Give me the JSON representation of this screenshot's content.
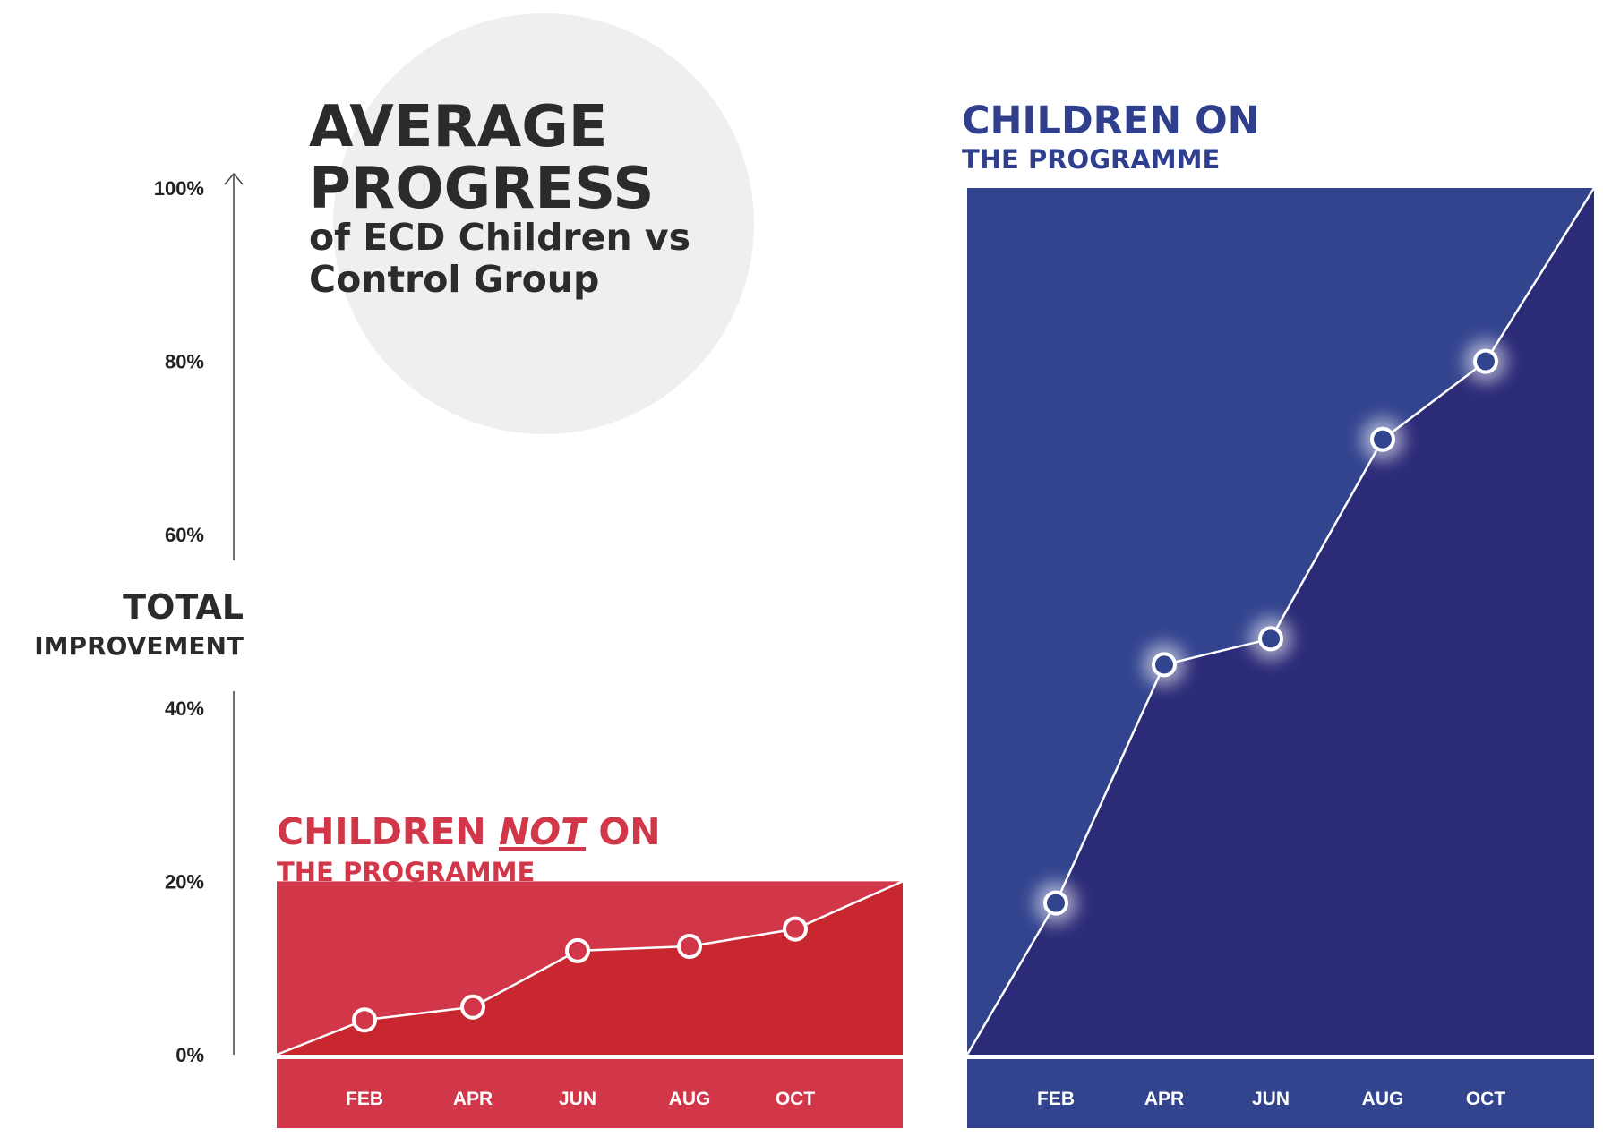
{
  "title": {
    "line1": "AVERAGE",
    "line2": "PROGRESS",
    "line3": "of ECD Children vs",
    "line4": "Control Group"
  },
  "axis": {
    "label_main": "TOTAL",
    "label_sub": "IMPROVEMENT"
  },
  "colors": {
    "control_panel": "#d13649",
    "control_area": "#c8272f",
    "programme_panel": "#33448f",
    "programme_area": "#2c2b78",
    "control_title": "#d13649",
    "programme_title": "#2f3f8e",
    "title_text": "#2b2b2b",
    "circle": "#efefef"
  },
  "chart_data": [
    {
      "type": "area",
      "title_line1_a": "CHILDREN ",
      "title_line1_b": "NOT",
      "title_line1_c": " ON",
      "title_line2": "THE PROGRAMME",
      "x": [
        "",
        "FEB",
        "APR",
        "JUN",
        "AUG",
        "OCT",
        ""
      ],
      "values": [
        0,
        4,
        5.5,
        12,
        12.5,
        14.5,
        20
      ],
      "markers": [
        false,
        true,
        true,
        true,
        true,
        true,
        false
      ],
      "ylim": [
        0,
        100
      ],
      "yticks": [
        "0%",
        "20%",
        "40%",
        "60%",
        "80%",
        "100%"
      ],
      "ylabel": "TOTAL IMPROVEMENT"
    },
    {
      "type": "area",
      "title_line1": "CHILDREN ON",
      "title_line2": "THE PROGRAMME",
      "x": [
        "",
        "FEB",
        "APR",
        "JUN",
        "AUG",
        "OCT",
        ""
      ],
      "values": [
        0,
        17.5,
        45,
        48,
        71,
        80,
        100
      ],
      "markers": [
        false,
        true,
        true,
        true,
        true,
        true,
        false
      ],
      "ylim": [
        0,
        100
      ]
    }
  ]
}
